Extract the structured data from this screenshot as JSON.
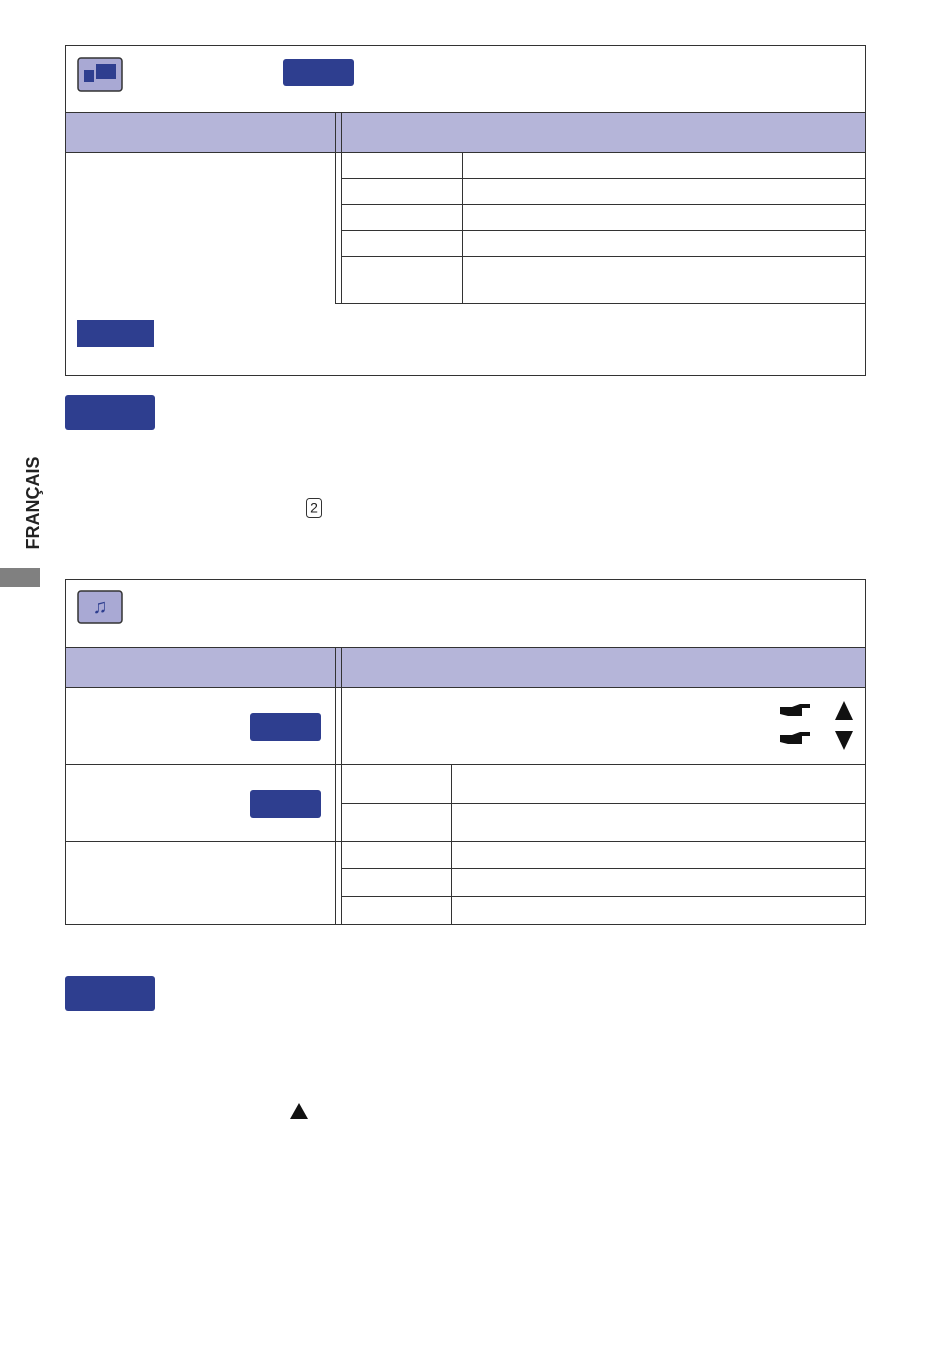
{
  "sidebar": {
    "language": "FRANÇAIS"
  },
  "text": {
    "key_number": "2"
  }
}
